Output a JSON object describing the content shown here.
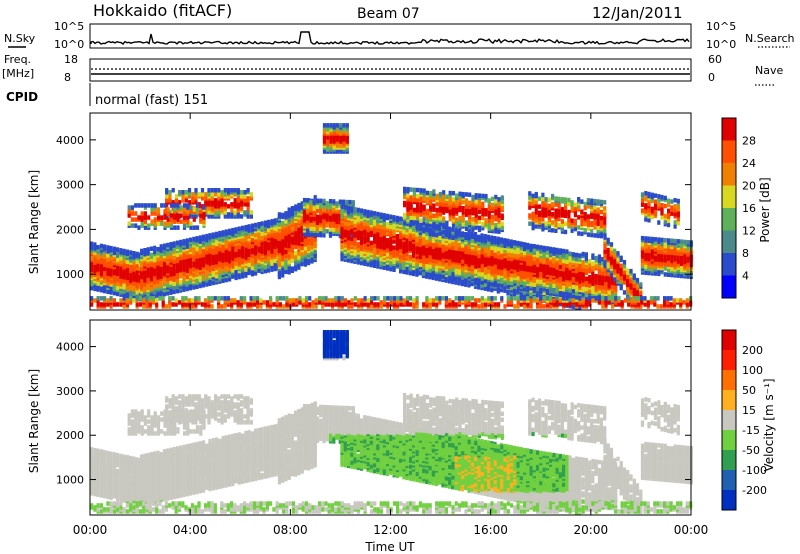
{
  "header": {
    "station": "Hokkaido (fitACF)",
    "beam": "Beam 07",
    "date": "12/Jan/2011"
  },
  "noise_panel": {
    "left_label": "N.Sky",
    "right_label": "N.Search",
    "ytick_top": "10^5",
    "ytick_bottom": "10^0",
    "rtick_top": "10^5",
    "rtick_bottom": "10^0"
  },
  "freq_panel": {
    "left_label_1": "Freq.",
    "left_label_2": "[MHz]",
    "right_label": "Nave",
    "ytick_top": "18",
    "ytick_bottom": "8",
    "rtick_top": "60",
    "rtick_bottom": "0"
  },
  "cpid_panel": {
    "label": "CPID",
    "value": "normal (fast) 151"
  },
  "chart_data": [
    {
      "type": "heatmap",
      "name": "power",
      "ylabel": "Slant Range [km]",
      "yticks": [
        "1000",
        "2000",
        "3000",
        "4000"
      ],
      "ylim": [
        200,
        4600
      ],
      "xlim": [
        0,
        24
      ],
      "xticks": [
        "00:00",
        "04:00",
        "08:00",
        "12:00",
        "16:00",
        "20:00",
        "00:00"
      ],
      "xlabel": "Time UT",
      "colorbar": {
        "label": "Power [dB]",
        "ticks": [
          "4",
          "8",
          "12",
          "16",
          "20",
          "24",
          "28"
        ],
        "colors": [
          "#0000ff",
          "#2a4bcc",
          "#4a8a8a",
          "#5fb05a",
          "#d8d820",
          "#f08000",
          "#ff5000",
          "#e00000"
        ]
      }
    },
    {
      "type": "heatmap",
      "name": "velocity",
      "ylabel": "Slant Range [km]",
      "yticks": [
        "1000",
        "2000",
        "3000",
        "4000"
      ],
      "ylim": [
        200,
        4600
      ],
      "xlim": [
        0,
        24
      ],
      "xticks": [
        "00:00",
        "04:00",
        "08:00",
        "12:00",
        "16:00",
        "20:00",
        "00:00"
      ],
      "xlabel": "Time UT",
      "colorbar": {
        "label": "Velocity [m s⁻¹]",
        "ticks": [
          "200",
          "100",
          "50",
          "15",
          "-15",
          "-50",
          "-100",
          "-200"
        ],
        "colors": [
          "#0030c0",
          "#2060b0",
          "#30a050",
          "#70d040",
          "#c8c8c0",
          "#ffb020",
          "#ff7000",
          "#ff2000",
          "#e00000"
        ]
      }
    }
  ],
  "colors": {
    "power_red": "#ff2000",
    "power_orange": "#ff8000",
    "power_green": "#50a050",
    "vel_gray": "#c0c0bc",
    "vel_green": "#60c840",
    "vel_orange": "#ffa020",
    "vel_blue": "#1030d0"
  }
}
